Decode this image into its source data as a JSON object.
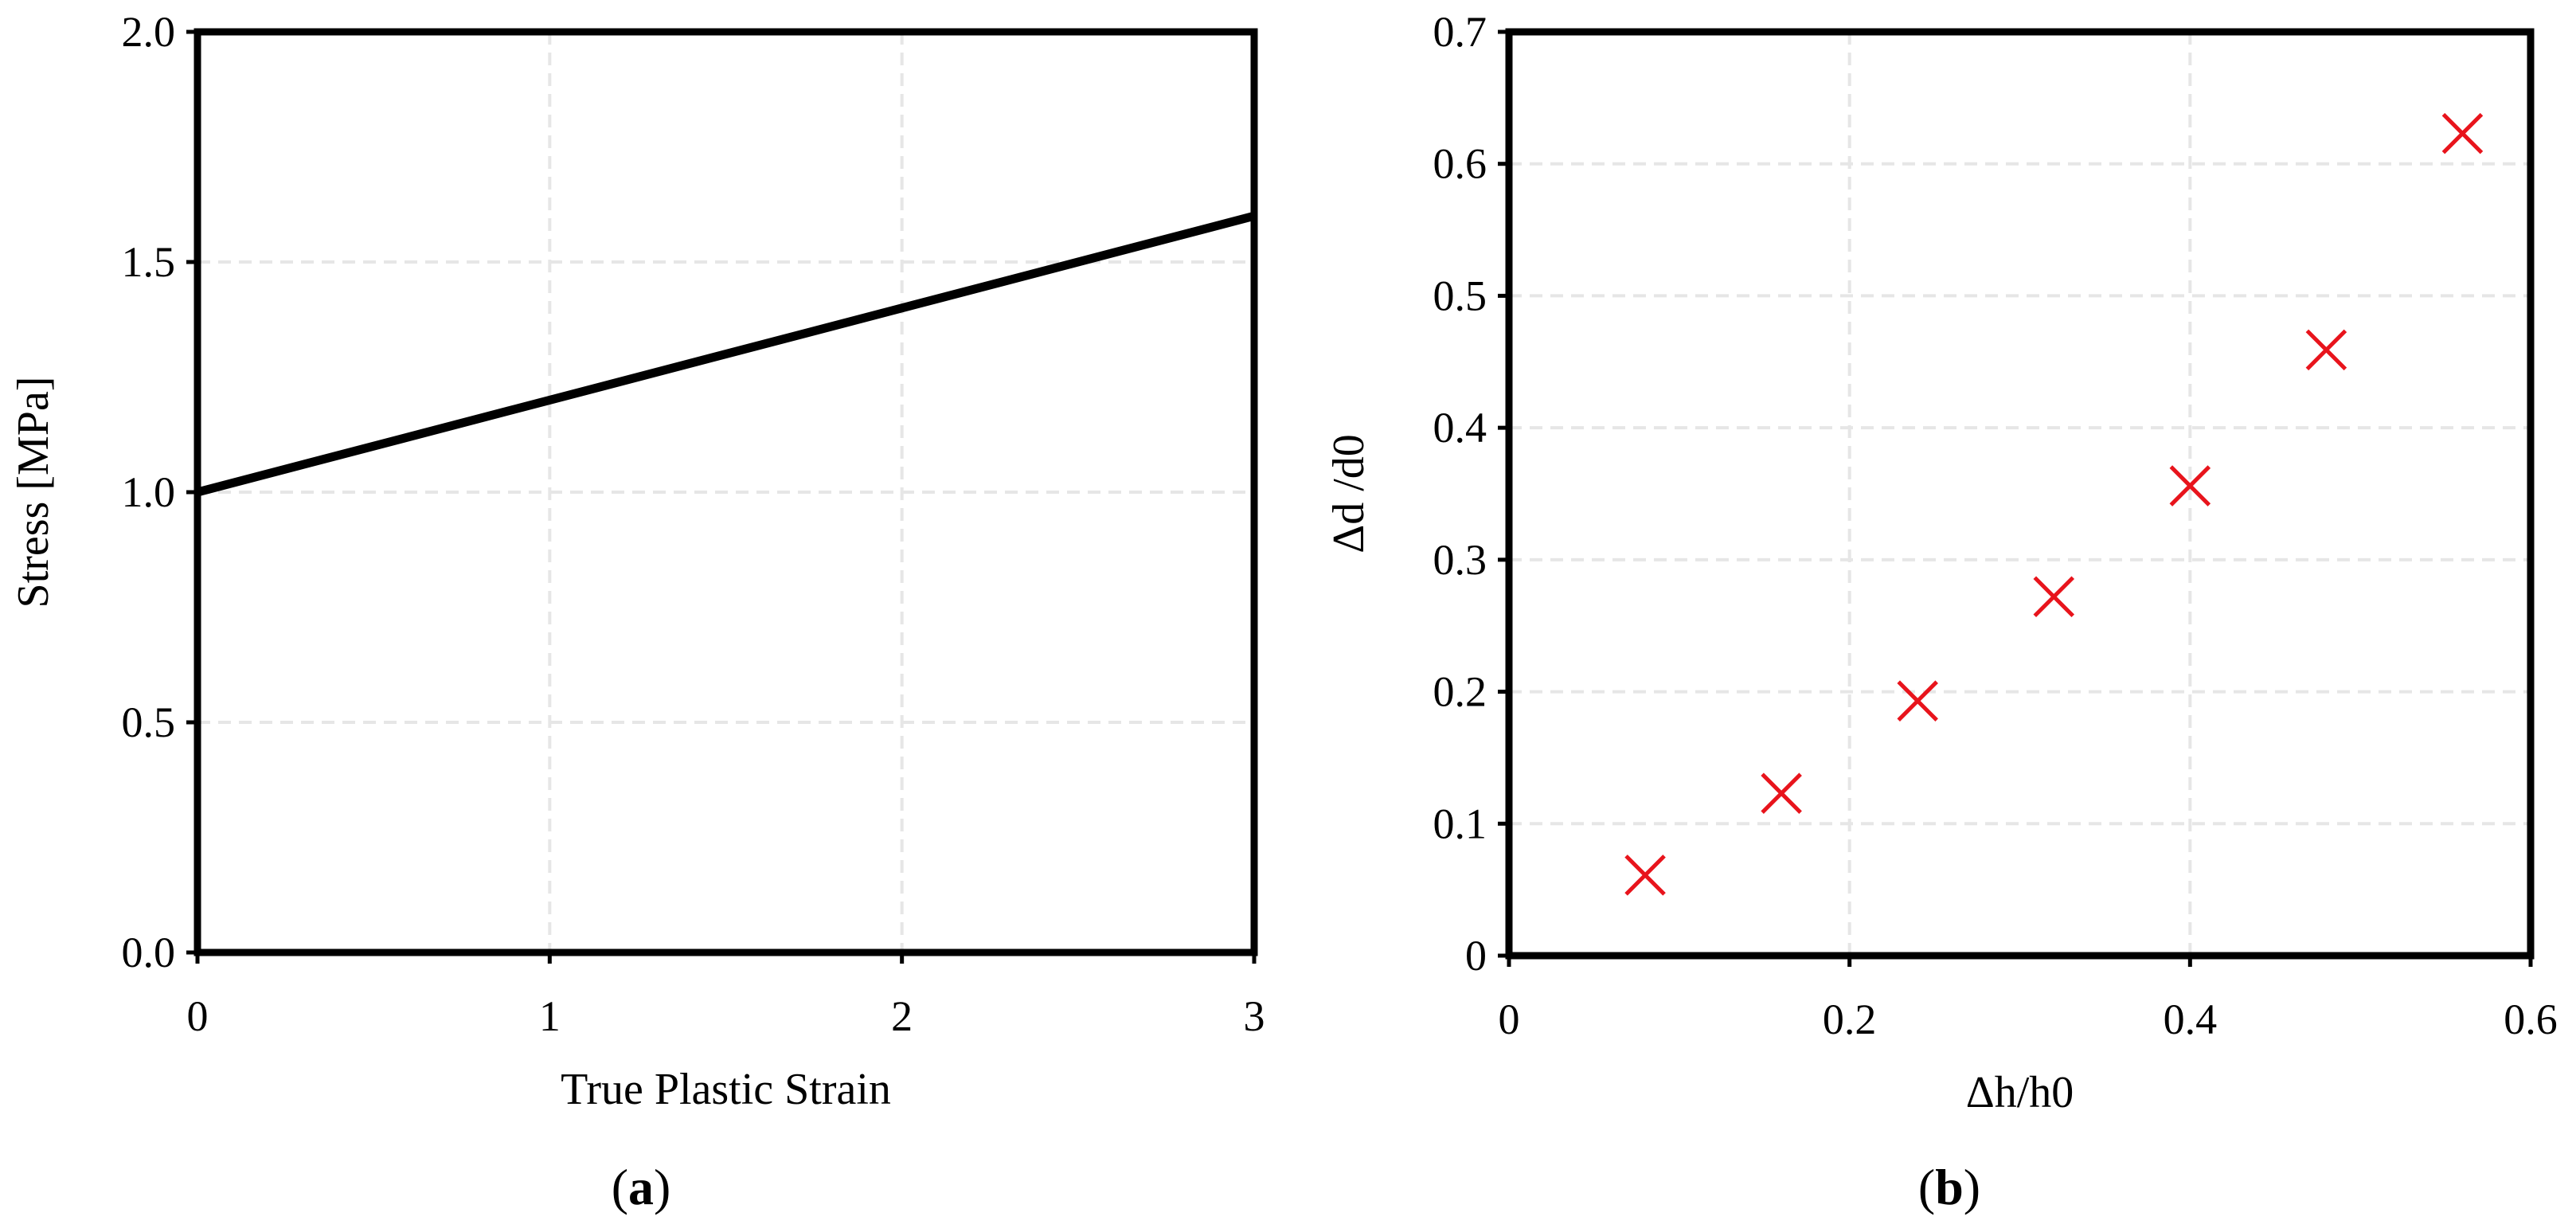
{
  "chart_data": [
    {
      "panel_label": "a",
      "type": "line",
      "xlabel": "True Plastic Strain",
      "ylabel": "Stress [MPa]",
      "xlim": [
        0,
        3
      ],
      "ylim": [
        0,
        2
      ],
      "xticks": [
        "0",
        "1",
        "2",
        "3"
      ],
      "yticks": [
        "0.0",
        "0.5",
        "1.0",
        "1.5",
        "2.0"
      ],
      "grid": true,
      "series": [
        {
          "x": [
            0,
            3
          ],
          "y": [
            1.0,
            1.6
          ],
          "color": "#000000"
        }
      ]
    },
    {
      "panel_label": "b",
      "type": "scatter",
      "xlabel": "Δh/h0",
      "ylabel": "Δd /d0",
      "xlim": [
        0,
        0.6
      ],
      "ylim": [
        0,
        0.7
      ],
      "xticks": [
        "0",
        "0.2",
        "0.4",
        "0.6"
      ],
      "yticks": [
        "0",
        "0.1",
        "0.2",
        "0.3",
        "0.4",
        "0.5",
        "0.6",
        "0.7"
      ],
      "grid": true,
      "series": [
        {
          "marker": "x",
          "color": "#e8141c",
          "x": [
            0.08,
            0.16,
            0.24,
            0.32,
            0.4,
            0.48,
            0.56
          ],
          "y": [
            0.061,
            0.123,
            0.193,
            0.272,
            0.356,
            0.459,
            0.623
          ]
        }
      ]
    }
  ],
  "captions": [
    {
      "open": "(",
      "letter": "a",
      "close": ")"
    },
    {
      "open": "(",
      "letter": "b",
      "close": ")"
    }
  ]
}
